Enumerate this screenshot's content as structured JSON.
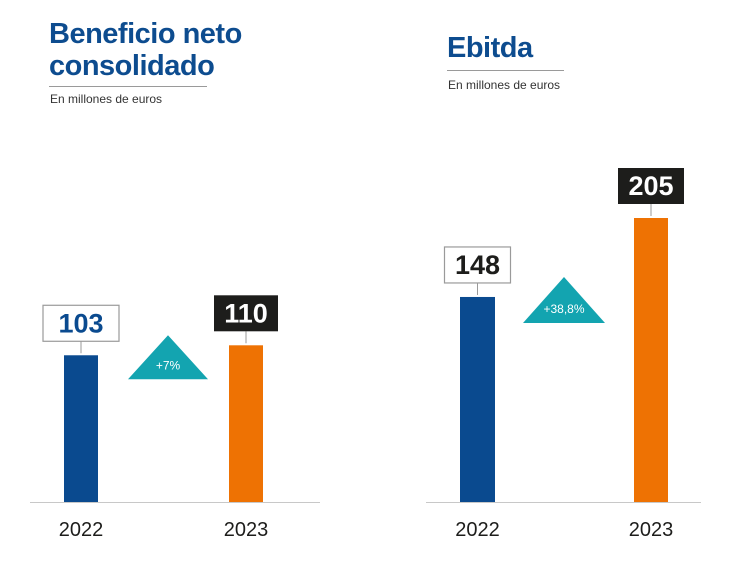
{
  "colors": {
    "title": "#0d4c8f",
    "bar_2022": "#0a4a8f",
    "bar_2023": "#ee7203",
    "change_badge": "#13a4b0",
    "label_2022_text": "#0a4a8f",
    "label_2023_bg": "#1d1d1b",
    "baseline": "#c8c8c8"
  },
  "chart_data": [
    {
      "type": "bar",
      "title": "Beneficio neto consolidado",
      "subtitle": "En millones de euros",
      "categories": [
        "2022",
        "2023"
      ],
      "values": [
        103,
        110
      ],
      "value_labels": [
        "103",
        "110"
      ],
      "change_label": "+7%",
      "ylim": [
        0,
        212
      ],
      "grid": false
    },
    {
      "type": "bar",
      "title": "Ebitda",
      "subtitle": "En millones de euros",
      "categories": [
        "2022",
        "2023"
      ],
      "values": [
        148,
        205
      ],
      "value_labels": [
        "148",
        "205"
      ],
      "change_label": "+38,8%",
      "ylim": [
        0,
        205
      ],
      "grid": false
    }
  ]
}
